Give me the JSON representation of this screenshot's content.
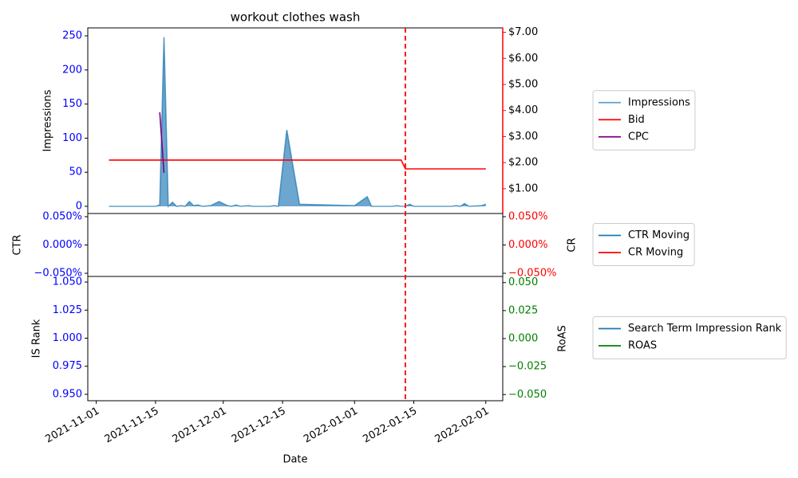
{
  "chart_data": [
    {
      "type": "line",
      "title": "workout clothes wash",
      "ylabel": "Impressions",
      "x": [
        "2021-11-04",
        "2021-11-15",
        "2021-11-16",
        "2021-11-17",
        "2021-11-18",
        "2021-11-19",
        "2021-11-20",
        "2021-11-21",
        "2021-11-22",
        "2021-11-23",
        "2021-11-24",
        "2021-11-25",
        "2021-11-26",
        "2021-11-28",
        "2021-11-30",
        "2021-12-01",
        "2021-12-02",
        "2021-12-03",
        "2021-12-04",
        "2021-12-05",
        "2021-12-07",
        "2021-12-08",
        "2021-12-12",
        "2021-12-13",
        "2021-12-14",
        "2021-12-16",
        "2021-12-19",
        "2022-01-01",
        "2022-01-04",
        "2022-01-05",
        "2022-01-10",
        "2022-01-11",
        "2022-01-12",
        "2022-01-13",
        "2022-01-14",
        "2022-01-15",
        "2022-01-24",
        "2022-01-25",
        "2022-01-26",
        "2022-01-27",
        "2022-01-28",
        "2022-01-31",
        "2022-02-01"
      ],
      "series": [
        {
          "name": "Impressions",
          "color": "#1f77b4",
          "fill": true,
          "values": [
            0,
            0,
            2,
            248,
            0,
            6,
            0,
            1,
            0,
            7,
            1,
            2,
            0,
            1,
            7,
            4,
            1,
            0,
            2,
            0,
            1,
            0,
            0,
            1,
            0,
            112,
            3,
            1,
            14,
            0,
            0,
            1,
            0,
            0,
            3,
            0,
            0,
            1,
            0,
            4,
            0,
            1,
            3
          ]
        },
        {
          "name": "Bid",
          "color": "red",
          "axis": "y2",
          "values": [
            2.1,
            2.1,
            2.1,
            2.1,
            2.1,
            2.1,
            2.1,
            2.1,
            2.1,
            2.1,
            2.1,
            2.1,
            2.1,
            2.1,
            2.1,
            2.1,
            2.1,
            2.1,
            2.1,
            2.1,
            2.1,
            2.1,
            2.1,
            2.1,
            2.1,
            2.1,
            2.1,
            2.1,
            2.1,
            2.1,
            2.1,
            2.1,
            2.1,
            1.76,
            1.76,
            1.76,
            1.76,
            1.76,
            1.76,
            1.76,
            1.76,
            1.76,
            1.76
          ]
        },
        {
          "name": "CPC",
          "color": "purple",
          "axis": "y2",
          "values": [
            null,
            null,
            3.93,
            1.61,
            null,
            null,
            null,
            null,
            null,
            null,
            null,
            null,
            null,
            null,
            null,
            null,
            null,
            null,
            null,
            null,
            null,
            null,
            null,
            null,
            null,
            null,
            null,
            null,
            null,
            null,
            null,
            null,
            null,
            null,
            null,
            null,
            null,
            null,
            null,
            null,
            null,
            null,
            null
          ]
        }
      ],
      "ylim": [
        -10.5,
        261.7
      ],
      "yticks": [
        0,
        50,
        100,
        150,
        200,
        250
      ],
      "y2lim": [
        0.05,
        7.17
      ],
      "y2ticks": [
        {
          "value": 1,
          "label": "$1.00"
        },
        {
          "value": 2,
          "label": "$2.00"
        },
        {
          "value": 3,
          "label": "$3.00"
        },
        {
          "value": 4,
          "label": "$4.00"
        },
        {
          "value": 5,
          "label": "$5.00"
        },
        {
          "value": 6,
          "label": "$6.00"
        },
        {
          "value": 7,
          "label": "$7.00"
        }
      ],
      "ytick_color": "blue",
      "y2tick_color": "black",
      "y2_spine_color": "red",
      "vline": "2022-01-13",
      "vline_color": "red"
    },
    {
      "type": "line",
      "ylabel": "CTR",
      "y2label": "CR",
      "series": [
        {
          "name": "CTR Moving",
          "color": "#1f77b4",
          "values": []
        },
        {
          "name": "CR Moving",
          "color": "red",
          "axis": "y2",
          "values": []
        }
      ],
      "ylim": [
        -0.0556,
        0.0556
      ],
      "yticks": [
        {
          "value": -0.05,
          "label": "−0.050%"
        },
        {
          "value": 0,
          "label": "0.000%"
        },
        {
          "value": 0.05,
          "label": "0.050%"
        }
      ],
      "y2lim": [
        -0.0556,
        0.0556
      ],
      "y2ticks": [
        {
          "value": -0.05,
          "label": "−0.050%"
        },
        {
          "value": 0,
          "label": "0.000%"
        },
        {
          "value": 0.05,
          "label": "0.050%"
        }
      ],
      "ytick_color": "blue",
      "y2tick_color": "red"
    },
    {
      "type": "line",
      "ylabel": "IS Rank",
      "y2label": "RoAS",
      "xlabel": "Date",
      "series": [
        {
          "name": "Search Term Impression Rank",
          "color": "#1f77b4",
          "values": []
        },
        {
          "name": "ROAS",
          "color": "green",
          "axis": "y2",
          "values": []
        }
      ],
      "ylim": [
        0.9443,
        1.055
      ],
      "yticks": [
        {
          "value": 0.95,
          "label": "0.950"
        },
        {
          "value": 0.975,
          "label": "0.975"
        },
        {
          "value": 1,
          "label": "1.000"
        },
        {
          "value": 1.025,
          "label": "1.025"
        },
        {
          "value": 1.05,
          "label": "1.050"
        }
      ],
      "y2lim": [
        -0.0555,
        0.0555
      ],
      "y2ticks": [
        {
          "value": -0.05,
          "label": "−0.050"
        },
        {
          "value": -0.025,
          "label": "−0.025"
        },
        {
          "value": 0,
          "label": "0.000"
        },
        {
          "value": 0.025,
          "label": "0.025"
        },
        {
          "value": 0.05,
          "label": "0.050"
        }
      ],
      "ytick_color": "blue",
      "y2tick_color": "green",
      "xlim": [
        "2021-10-30",
        "2022-02-05"
      ],
      "xticks": [
        "2021-11-01",
        "2021-11-15",
        "2021-12-01",
        "2021-12-15",
        "2022-01-01",
        "2022-01-15",
        "2022-02-01"
      ]
    }
  ]
}
